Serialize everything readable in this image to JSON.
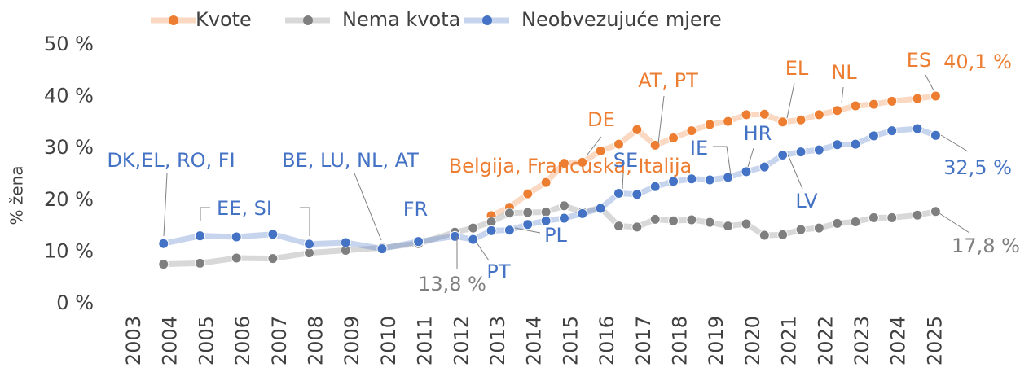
{
  "chart_data": {
    "type": "line",
    "y_label": "% žena",
    "x": [
      2003.8,
      2004.8,
      2005.8,
      2006.8,
      2007.8,
      2008.8,
      2009.8,
      2010.8,
      2011.8,
      2012.3,
      2012.8,
      2013.3,
      2013.8,
      2014.3,
      2014.8,
      2015.3,
      2015.8,
      2016.3,
      2016.8,
      2017.3,
      2017.8,
      2018.3,
      2018.8,
      2019.3,
      2019.8,
      2020.3,
      2020.8,
      2021.3,
      2021.8,
      2022.3,
      2022.8,
      2023.3,
      2023.8,
      2024.5,
      2025.0
    ],
    "series": [
      {
        "name": "Kvote",
        "color": "#ed7d31",
        "values": [
          null,
          null,
          null,
          null,
          null,
          null,
          null,
          null,
          null,
          null,
          17.0,
          18.6,
          21.2,
          23.4,
          27.1,
          27.3,
          29.5,
          30.8,
          33.6,
          30.6,
          32.0,
          33.4,
          34.6,
          35.2,
          36.5,
          36.6,
          35.1,
          35.5,
          36.5,
          37.3,
          38.2,
          38.5,
          39.1,
          39.6,
          40.1
        ]
      },
      {
        "name": "Nema kvota",
        "color": "#7f7f7f",
        "values": [
          7.6,
          7.8,
          8.8,
          8.7,
          9.8,
          10.3,
          10.8,
          11.6,
          13.8,
          14.6,
          15.8,
          17.5,
          17.6,
          17.7,
          18.9,
          17.7,
          18.5,
          15.0,
          14.8,
          16.3,
          16.0,
          16.2,
          15.7,
          15.0,
          15.4,
          13.2,
          13.3,
          14.3,
          14.6,
          15.5,
          15.8,
          16.6,
          16.6,
          17.1,
          17.8
        ]
      },
      {
        "name": "Neobvezujuće mjere",
        "color": "#4472c4",
        "values": [
          11.6,
          13.1,
          12.9,
          13.4,
          11.5,
          11.8,
          10.6,
          12.0,
          13.0,
          12.4,
          14.1,
          14.2,
          15.3,
          16.0,
          16.5,
          17.4,
          18.4,
          21.3,
          21.1,
          22.6,
          23.6,
          24.1,
          23.9,
          24.4,
          25.5,
          26.4,
          28.7,
          29.3,
          29.7,
          30.7,
          30.8,
          32.4,
          33.4,
          33.8,
          32.5
        ]
      }
    ],
    "xlim": [
      2003,
      2025
    ],
    "xticks": [
      2003,
      2004,
      2005,
      2006,
      2007,
      2008,
      2009,
      2010,
      2011,
      2012,
      2013,
      2014,
      2015,
      2016,
      2017,
      2018,
      2019,
      2020,
      2021,
      2022,
      2023,
      2024,
      2025
    ],
    "ylim": [
      0,
      50
    ],
    "yticks": [
      {
        "value": 0,
        "label": "0 %"
      },
      {
        "value": 10,
        "label": "10 %"
      },
      {
        "value": 20,
        "label": "20 %"
      },
      {
        "value": 30,
        "label": "30 %"
      },
      {
        "value": 40,
        "label": "40 %"
      },
      {
        "value": 50,
        "label": "50 %"
      }
    ],
    "grid": false,
    "legend": "top",
    "annotations": [
      {
        "text": "DK,EL, RO, FI",
        "color": "#4472c4"
      },
      {
        "text": "EE, SI",
        "color": "#4472c4"
      },
      {
        "text": "BE, LU, NL, AT",
        "color": "#4472c4"
      },
      {
        "text": "FR",
        "color": "#4472c4"
      },
      {
        "text": "Belgija, Francuska, Italija",
        "color": "#ed7d31"
      },
      {
        "text": "13,8 %",
        "color": "#7f7f7f"
      },
      {
        "text": "PT",
        "color": "#4472c4"
      },
      {
        "text": "PL",
        "color": "#4472c4"
      },
      {
        "text": "DE",
        "color": "#ed7d31"
      },
      {
        "text": "SE",
        "color": "#4472c4"
      },
      {
        "text": "AT, PT",
        "color": "#ed7d31"
      },
      {
        "text": "IE",
        "color": "#4472c4"
      },
      {
        "text": "HR",
        "color": "#4472c4"
      },
      {
        "text": "EL",
        "color": "#ed7d31"
      },
      {
        "text": "NL",
        "color": "#ed7d31"
      },
      {
        "text": "LV",
        "color": "#4472c4"
      },
      {
        "text": "ES",
        "color": "#ed7d31"
      },
      {
        "text": "40,1 %",
        "color": "#ed7d31"
      },
      {
        "text": "32,5 %",
        "color": "#4472c4"
      },
      {
        "text": "17,8 %",
        "color": "#7f7f7f"
      }
    ]
  }
}
